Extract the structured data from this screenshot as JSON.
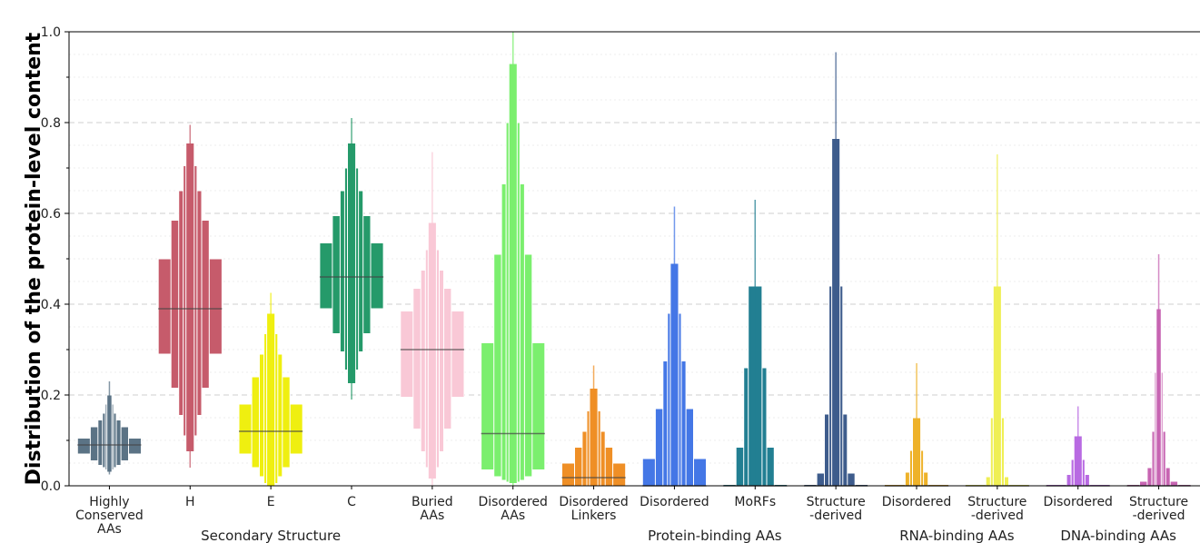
{
  "chart_data": {
    "type": "boxen",
    "ylabel": "Distribution of the protein-level content",
    "ylim": [
      0,
      1.0
    ],
    "yticks": [
      "0.0",
      "0.2",
      "0.4",
      "0.6",
      "0.8",
      "1.0"
    ],
    "grid": "horizontal dashed",
    "categories": [
      {
        "label": [
          "Highly",
          "Conserved",
          "AAs"
        ],
        "color": "#5b7385",
        "median": 0.09,
        "levels": [
          [
            0.07,
            0.105
          ],
          [
            0.055,
            0.13
          ],
          [
            0.045,
            0.145
          ],
          [
            0.04,
            0.16
          ],
          [
            0.035,
            0.18
          ],
          [
            0.03,
            0.2
          ],
          [
            0.025,
            0.23
          ]
        ]
      },
      {
        "label": [
          "H"
        ],
        "color": "#c65b6b",
        "median": 0.39,
        "levels": [
          [
            0.29,
            0.5
          ],
          [
            0.215,
            0.585
          ],
          [
            0.155,
            0.65
          ],
          [
            0.11,
            0.705
          ],
          [
            0.075,
            0.755
          ],
          [
            0.04,
            0.795
          ]
        ]
      },
      {
        "label": [
          "E"
        ],
        "color": "#efef10",
        "median": 0.12,
        "levels": [
          [
            0.07,
            0.18
          ],
          [
            0.04,
            0.24
          ],
          [
            0.02,
            0.29
          ],
          [
            0.005,
            0.335
          ],
          [
            0.0,
            0.38
          ],
          [
            0.0,
            0.425
          ]
        ]
      },
      {
        "label": [
          "C"
        ],
        "color": "#259a6a",
        "median": 0.46,
        "levels": [
          [
            0.39,
            0.535
          ],
          [
            0.335,
            0.595
          ],
          [
            0.295,
            0.65
          ],
          [
            0.255,
            0.7
          ],
          [
            0.225,
            0.755
          ],
          [
            0.19,
            0.81
          ]
        ]
      },
      {
        "label": [
          "Buried",
          "AAs"
        ],
        "color": "#f9c8d6",
        "median": 0.3,
        "levels": [
          [
            0.195,
            0.385
          ],
          [
            0.125,
            0.435
          ],
          [
            0.075,
            0.475
          ],
          [
            0.04,
            0.52
          ],
          [
            0.015,
            0.58
          ],
          [
            0.0,
            0.735
          ]
        ]
      },
      {
        "label": [
          "Disordered",
          "AAs"
        ],
        "color": "#7bef6e",
        "median": 0.115,
        "levels": [
          [
            0.035,
            0.315
          ],
          [
            0.02,
            0.51
          ],
          [
            0.012,
            0.665
          ],
          [
            0.008,
            0.8
          ],
          [
            0.005,
            0.93
          ],
          [
            0.0,
            1.0
          ]
        ]
      },
      {
        "label": [
          "Disordered",
          "Linkers"
        ],
        "color": "#ef8f26",
        "median": 0.018,
        "levels": [
          [
            0.0,
            0.05
          ],
          [
            0.0,
            0.085
          ],
          [
            0.0,
            0.12
          ],
          [
            0.0,
            0.165
          ],
          [
            0.0,
            0.215
          ],
          [
            0.0,
            0.265
          ]
        ]
      },
      {
        "label": [
          "Disordered"
        ],
        "color": "#4477e6",
        "median": 0.0,
        "levels": [
          [
            0.0,
            0.06
          ],
          [
            0.0,
            0.17
          ],
          [
            0.0,
            0.275
          ],
          [
            0.0,
            0.38
          ],
          [
            0.0,
            0.49
          ],
          [
            0.0,
            0.615
          ]
        ]
      },
      {
        "label": [
          "MoRFs"
        ],
        "color": "#227f92",
        "median": 0.0,
        "levels": [
          [
            0.0,
            0.0
          ],
          [
            0.0,
            0.085
          ],
          [
            0.0,
            0.26
          ],
          [
            0.0,
            0.44
          ],
          [
            0.0,
            0.63
          ]
        ]
      },
      {
        "label": [
          "Structure",
          "-derived"
        ],
        "color": "#3e5c8c",
        "median": 0.0,
        "levels": [
          [
            0.0,
            0.0
          ],
          [
            0.0,
            0.028
          ],
          [
            0.0,
            0.158
          ],
          [
            0.0,
            0.44
          ],
          [
            0.0,
            0.765
          ],
          [
            0.0,
            0.955
          ]
        ]
      },
      {
        "label": [
          "Disordered"
        ],
        "color": "#eeb22a",
        "median": 0.0,
        "levels": [
          [
            0.0,
            0.0
          ],
          [
            0.0,
            0.0
          ],
          [
            0.0,
            0.03
          ],
          [
            0.0,
            0.078
          ],
          [
            0.0,
            0.15
          ],
          [
            0.0,
            0.27
          ]
        ]
      },
      {
        "label": [
          "Structure",
          "-derived"
        ],
        "color": "#efef55",
        "median": 0.0,
        "levels": [
          [
            0.0,
            0.0
          ],
          [
            0.0,
            0.0
          ],
          [
            0.0,
            0.02
          ],
          [
            0.0,
            0.15
          ],
          [
            0.0,
            0.44
          ],
          [
            0.0,
            0.73
          ]
        ]
      },
      {
        "label": [
          "Disordered"
        ],
        "color": "#b86ae2",
        "median": 0.0,
        "levels": [
          [
            0.0,
            0.0
          ],
          [
            0.0,
            0.0
          ],
          [
            0.0,
            0.025
          ],
          [
            0.0,
            0.058
          ],
          [
            0.0,
            0.11
          ],
          [
            0.0,
            0.175
          ]
        ]
      },
      {
        "label": [
          "Structure",
          "-derived"
        ],
        "color": "#c764b2",
        "median": 0.0,
        "levels": [
          [
            0.0,
            0.0
          ],
          [
            0.0,
            0.01
          ],
          [
            0.0,
            0.04
          ],
          [
            0.0,
            0.12
          ],
          [
            0.0,
            0.25
          ],
          [
            0.0,
            0.39
          ],
          [
            0.0,
            0.51
          ]
        ]
      }
    ],
    "groups": [
      {
        "label": "Secondary Structure",
        "from": 1,
        "to": 3
      },
      {
        "label": "Protein-binding AAs",
        "from": 6,
        "to": 9
      },
      {
        "label": "RNA-binding AAs",
        "from": 10,
        "to": 11
      },
      {
        "label": "DNA-binding AAs",
        "from": 12,
        "to": 13
      }
    ]
  }
}
